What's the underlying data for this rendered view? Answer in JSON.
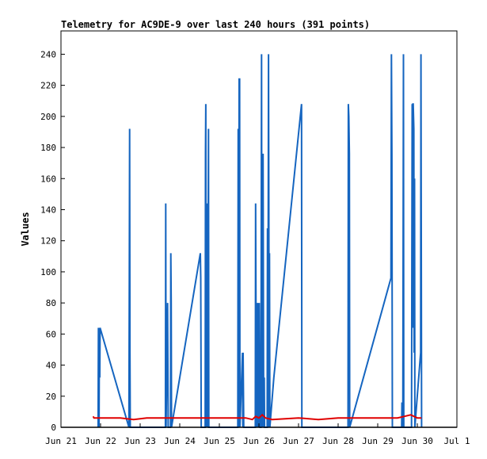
{
  "chart_data": {
    "type": "line",
    "title": "Telemetry for AC9DE-9 over last 240 hours (391 points)",
    "xlabel": "",
    "ylabel": "Values",
    "ylim": [
      0,
      255
    ],
    "yticks": [
      0,
      20,
      40,
      60,
      80,
      100,
      120,
      140,
      160,
      180,
      200,
      220,
      240
    ],
    "xlim": [
      0,
      240
    ],
    "xticks": [
      {
        "label": "Jun 21",
        "hour": 0
      },
      {
        "label": "Jun 22",
        "hour": 24
      },
      {
        "label": "Jun 23",
        "hour": 48
      },
      {
        "label": "Jun 24",
        "hour": 72
      },
      {
        "label": "Jun 25",
        "hour": 96
      },
      {
        "label": "Jun 26",
        "hour": 120
      },
      {
        "label": "Jun 27",
        "hour": 144
      },
      {
        "label": "Jun 28",
        "hour": 168
      },
      {
        "label": "Jun 29",
        "hour": 192
      },
      {
        "label": "Jun 30",
        "hour": 216
      },
      {
        "label": "Jul 1",
        "hour": 240
      }
    ],
    "grid": false,
    "legend": "none",
    "series": [
      {
        "color": "#1565c0",
        "points": [
          [
            22.5,
            0
          ],
          [
            22.7,
            64
          ],
          [
            22.9,
            32
          ],
          [
            23.1,
            0
          ],
          [
            23.3,
            64
          ],
          [
            23.5,
            32
          ],
          [
            23.7,
            64
          ],
          [
            41.2,
            0
          ],
          [
            41.4,
            96
          ],
          [
            41.6,
            192
          ],
          [
            41.8,
            48
          ],
          [
            42.0,
            0
          ],
          [
            63.3,
            0
          ],
          [
            63.5,
            144
          ],
          [
            63.7,
            0
          ],
          [
            64.6,
            80
          ],
          [
            64.8,
            40
          ],
          [
            65.0,
            0
          ],
          [
            66.4,
            0
          ],
          [
            66.6,
            112
          ],
          [
            66.8,
            80
          ],
          [
            67.0,
            0
          ],
          [
            84.5,
            112
          ],
          [
            84.7,
            96
          ],
          [
            85.0,
            0
          ],
          [
            87.4,
            0
          ],
          [
            87.6,
            176
          ],
          [
            87.8,
            208
          ],
          [
            88.0,
            0
          ],
          [
            88.6,
            144
          ],
          [
            88.8,
            0
          ],
          [
            89.4,
            192
          ],
          [
            89.6,
            0
          ],
          [
            107.2,
            0
          ],
          [
            107.4,
            192
          ],
          [
            107.6,
            0
          ],
          [
            108.0,
            224
          ],
          [
            108.3,
            224
          ],
          [
            108.5,
            0
          ],
          [
            110.0,
            48
          ],
          [
            110.2,
            0
          ],
          [
            110.4,
            48
          ],
          [
            110.6,
            24
          ],
          [
            110.8,
            0
          ],
          [
            117.8,
            0
          ],
          [
            118.0,
            144
          ],
          [
            118.2,
            72
          ],
          [
            118.4,
            0
          ],
          [
            118.6,
            40
          ],
          [
            118.8,
            80
          ],
          [
            119.0,
            40
          ],
          [
            119.2,
            0
          ],
          [
            119.4,
            80
          ],
          [
            119.6,
            72
          ],
          [
            119.8,
            0
          ],
          [
            120.0,
            40
          ],
          [
            120.2,
            80
          ],
          [
            120.4,
            40
          ],
          [
            120.6,
            0
          ],
          [
            121.2,
            0
          ],
          [
            121.4,
            120
          ],
          [
            121.6,
            240
          ],
          [
            121.8,
            0
          ],
          [
            122.0,
            168
          ],
          [
            122.2,
            0
          ],
          [
            122.5,
            176
          ],
          [
            122.7,
            88
          ],
          [
            122.9,
            0
          ],
          [
            123.2,
            32
          ],
          [
            123.4,
            0
          ],
          [
            125.0,
            0
          ],
          [
            125.2,
            128
          ],
          [
            125.4,
            0
          ],
          [
            125.8,
            240
          ],
          [
            126.0,
            144
          ],
          [
            126.2,
            0
          ],
          [
            126.4,
            112
          ],
          [
            126.6,
            0
          ],
          [
            129.0,
            32
          ],
          [
            145.8,
            208
          ],
          [
            146.0,
            0
          ],
          [
            174.0,
            0
          ],
          [
            174.2,
            208
          ],
          [
            174.5,
            200
          ],
          [
            174.8,
            176
          ],
          [
            175.0,
            0
          ],
          [
            200.0,
            96
          ],
          [
            200.3,
            240
          ],
          [
            200.6,
            176
          ],
          [
            200.9,
            0
          ],
          [
            206.5,
            0
          ],
          [
            206.7,
            16
          ],
          [
            206.9,
            0
          ],
          [
            207.2,
            0
          ],
          [
            207.4,
            120
          ],
          [
            207.6,
            240
          ],
          [
            207.8,
            0
          ],
          [
            212.5,
            0
          ],
          [
            212.7,
            104
          ],
          [
            212.9,
            208
          ],
          [
            213.1,
            64
          ],
          [
            213.3,
            208
          ],
          [
            213.5,
            208
          ],
          [
            213.7,
            200
          ],
          [
            213.9,
            192
          ],
          [
            214.1,
            48
          ],
          [
            214.3,
            160
          ],
          [
            214.5,
            0
          ],
          [
            218.0,
            48
          ],
          [
            218.2,
            240
          ],
          [
            218.4,
            120
          ],
          [
            218.6,
            0
          ]
        ]
      },
      {
        "color": "#e00000",
        "points": [
          [
            19.5,
            7
          ],
          [
            20.0,
            6
          ],
          [
            24,
            6
          ],
          [
            36,
            6
          ],
          [
            44,
            5
          ],
          [
            52,
            6
          ],
          [
            72,
            6
          ],
          [
            96,
            6
          ],
          [
            112,
            6
          ],
          [
            116,
            5
          ],
          [
            118,
            7
          ],
          [
            120,
            6
          ],
          [
            122,
            8
          ],
          [
            124,
            6
          ],
          [
            128,
            5
          ],
          [
            144,
            6
          ],
          [
            156,
            5
          ],
          [
            168,
            6
          ],
          [
            192,
            6
          ],
          [
            204,
            6
          ],
          [
            208,
            7
          ],
          [
            212,
            8
          ],
          [
            216,
            6
          ],
          [
            218.5,
            6
          ]
        ]
      },
      {
        "color": "#000000",
        "points": [
          [
            0,
            0
          ],
          [
            240,
            0
          ]
        ]
      }
    ]
  }
}
